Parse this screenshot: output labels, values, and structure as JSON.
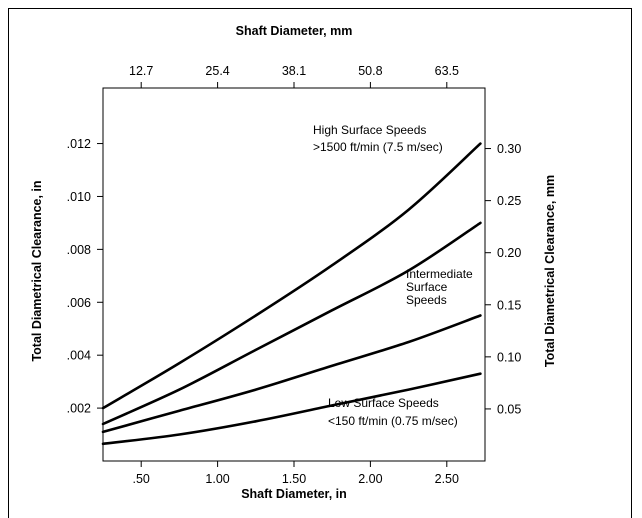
{
  "chart_data": {
    "type": "line",
    "title": "",
    "xlabel": "Shaft Diameter, in",
    "x2label": "Shaft Diameter, mm",
    "ylabel": "Total Diametrical Clearance, in",
    "y2label": "Total Diametrical Clearance, mm",
    "xlim": [
      0.25,
      2.75
    ],
    "ylim": [
      0,
      0.0141
    ],
    "x_ticks": [
      0.5,
      1.0,
      1.5,
      2.0,
      2.5
    ],
    "x_tick_labels": [
      ".50",
      "1.00",
      "1.50",
      "2.00",
      "2.50"
    ],
    "x2_ticks": [
      12.7,
      25.4,
      38.1,
      50.8,
      63.5
    ],
    "x2_tick_labels": [
      "12.7",
      "25.4",
      "38.1",
      "50.8",
      "63.5"
    ],
    "y_ticks": [
      0.002,
      0.004,
      0.006,
      0.008,
      0.01,
      0.012
    ],
    "y_tick_labels": [
      ".002",
      ".004",
      ".006",
      ".008",
      ".010",
      ".012"
    ],
    "y2_ticks": [
      0.05,
      0.1,
      0.15,
      0.2,
      0.25,
      0.3
    ],
    "y2_tick_labels": [
      "0.05",
      "0.10",
      "0.15",
      "0.20",
      "0.25",
      "0.30"
    ],
    "grid": false,
    "series": [
      {
        "x": [
          0.25,
          0.75,
          1.25,
          1.75,
          2.25,
          2.72
        ],
        "y": [
          0.002,
          0.0037,
          0.0055,
          0.0074,
          0.0095,
          0.012
        ]
      },
      {
        "x": [
          0.25,
          0.75,
          1.25,
          1.75,
          2.25,
          2.72
        ],
        "y": [
          0.0014,
          0.0027,
          0.0042,
          0.0057,
          0.0072,
          0.009
        ]
      },
      {
        "x": [
          0.25,
          0.75,
          1.25,
          1.75,
          2.25,
          2.72
        ],
        "y": [
          0.0011,
          0.0019,
          0.0027,
          0.0036,
          0.0045,
          0.0055
        ]
      },
      {
        "x": [
          0.25,
          0.75,
          1.25,
          1.75,
          2.25,
          2.72
        ],
        "y": [
          0.00065,
          0.001,
          0.0015,
          0.0021,
          0.0027,
          0.0033
        ]
      }
    ],
    "annotations": [
      {
        "lines": [
          "High Surface Speeds",
          ">1500 ft/min (7.5 m/sec)"
        ]
      },
      {
        "lines": [
          "Intermediate",
          "Surface",
          "Speeds"
        ]
      },
      {
        "lines": [
          "Low Surface Speeds",
          "<150 ft/min (0.75 m/sec)"
        ]
      }
    ]
  }
}
